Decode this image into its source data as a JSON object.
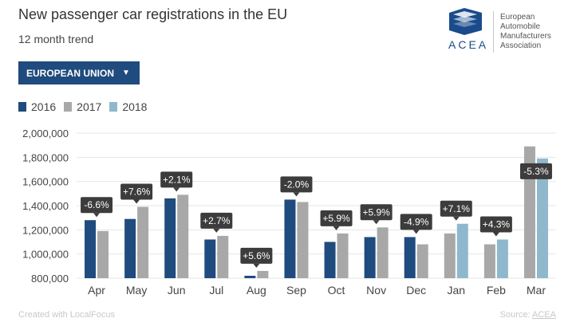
{
  "header": {
    "title": "New passenger car registrations in the EU",
    "subtitle": "12 month trend"
  },
  "logo": {
    "name": "ACEA",
    "line1": "European",
    "line2": "Automobile",
    "line3": "Manufacturers",
    "line4": "Association",
    "icon": "acea-logo-icon"
  },
  "filter": {
    "selected": "EUROPEAN UNION"
  },
  "footer": {
    "created": "Created with LocalFocus",
    "source_prefix": "Source: ",
    "source_link": "ACEA"
  },
  "colors": {
    "2016": "#1f4b7e",
    "2017": "#a8a8a8",
    "2018": "#8fb8cd",
    "label_bg": "#3c3c3c"
  },
  "chart_data": {
    "type": "bar",
    "categories": [
      "Apr",
      "May",
      "Jun",
      "Jul",
      "Aug",
      "Sep",
      "Oct",
      "Nov",
      "Dec",
      "Jan",
      "Feb",
      "Mar"
    ],
    "series": [
      {
        "name": "2016",
        "values": [
          1280000,
          1290000,
          1460000,
          1120000,
          820000,
          1450000,
          1100000,
          1140000,
          1140000,
          null,
          null,
          null
        ]
      },
      {
        "name": "2017",
        "values": [
          1190000,
          1390000,
          1490000,
          1150000,
          860000,
          1430000,
          1170000,
          1220000,
          1080000,
          1170000,
          1080000,
          1890000
        ]
      },
      {
        "name": "2018",
        "values": [
          null,
          null,
          null,
          null,
          null,
          null,
          null,
          null,
          null,
          1250000,
          1120000,
          1790000
        ]
      }
    ],
    "change_labels": [
      "-6.6%",
      "+7.6%",
      "+2.1%",
      "+2.7%",
      "+5.6%",
      "-2.0%",
      "+5.9%",
      "+5.9%",
      "-4.9%",
      "+7.1%",
      "+4.3%",
      "-5.3%"
    ],
    "yticks": [
      "2,000,000",
      "1,800,000",
      "1,600,000",
      "1,400,000",
      "1,200,000",
      "1,000,000",
      "800,000"
    ],
    "ytick_values": [
      2000000,
      1800000,
      1600000,
      1400000,
      1200000,
      1000000,
      800000
    ],
    "ylim": [
      800000,
      2000000
    ],
    "grid": true,
    "legend": "top-left"
  }
}
